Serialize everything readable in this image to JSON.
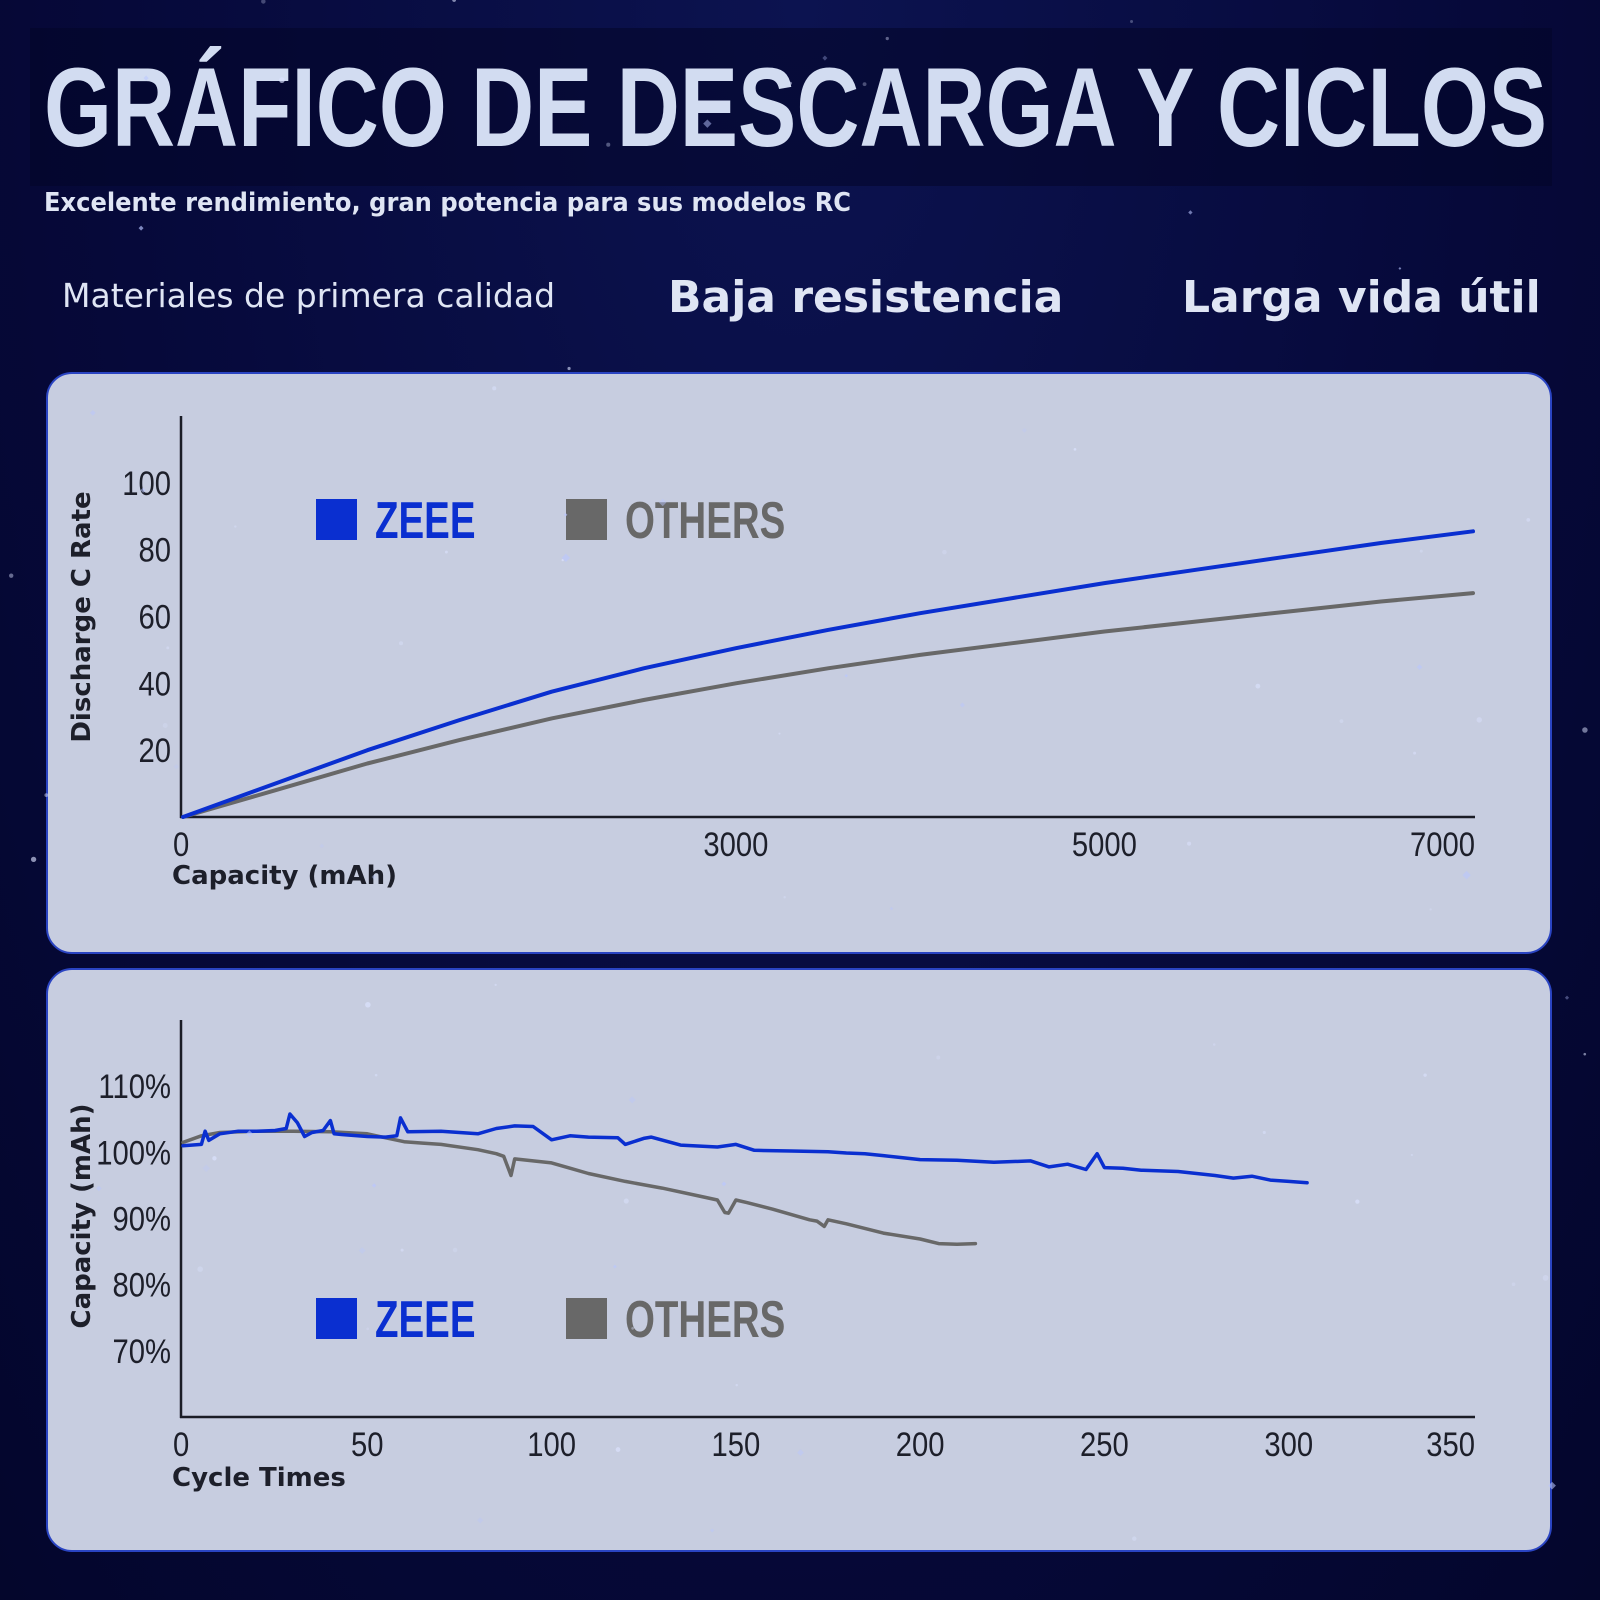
{
  "header": {
    "title": "GRÁFICO DE DESCARGA Y CICLOS",
    "subtitle": "Excelente rendimiento, gran potencia para sus modelos RC"
  },
  "features": [
    {
      "label": "Materiales de primera calidad"
    },
    {
      "label": "Baja resistencia"
    },
    {
      "label": "Larga vida útil"
    }
  ],
  "colors": {
    "zeee": "#0a2fd0",
    "others": "#686868",
    "panel": "#c7cde0",
    "background": "#06093a"
  },
  "chart_data": [
    {
      "type": "line",
      "xlabel": "Capacity (mAh)",
      "ylabel": "Discharge C Rate",
      "xlim": [
        0,
        7000
      ],
      "ylim": [
        0,
        120
      ],
      "x_ticks": [
        "0",
        "3000",
        "5000",
        "7000"
      ],
      "x_tick_values": [
        0,
        3000,
        5000,
        7000
      ],
      "y_ticks": [
        "20",
        "40",
        "60",
        "80",
        "100"
      ],
      "y_tick_values": [
        20,
        40,
        60,
        80,
        100
      ],
      "legend": "top-left",
      "series": [
        {
          "name": "ZEEE",
          "x": [
            0,
            500,
            1000,
            1500,
            2000,
            2500,
            3000,
            3500,
            4000,
            4500,
            5000,
            5500,
            6000,
            6500,
            7000
          ],
          "y": [
            0,
            10,
            20,
            29,
            37.5,
            44.5,
            50.5,
            56,
            61,
            65.5,
            70,
            74,
            78,
            82,
            85.5
          ]
        },
        {
          "name": "OTHERS",
          "x": [
            0,
            500,
            1000,
            1500,
            2000,
            2500,
            3000,
            3500,
            4000,
            4500,
            5000,
            5500,
            6000,
            6500,
            7000
          ],
          "y": [
            0,
            8,
            16,
            23,
            29.5,
            35,
            40,
            44.5,
            48.5,
            52,
            55.5,
            58.5,
            61.5,
            64.5,
            67
          ]
        }
      ]
    },
    {
      "type": "line",
      "xlabel": "Cycle Times",
      "ylabel": "Capacity (mAh)",
      "xlim": [
        0,
        350
      ],
      "ylim": [
        60,
        120
      ],
      "x_ticks": [
        "0",
        "50",
        "100",
        "150",
        "200",
        "250",
        "300",
        "350"
      ],
      "x_tick_values": [
        0,
        50,
        100,
        150,
        200,
        250,
        300,
        350
      ],
      "y_ticks": [
        "70%",
        "80%",
        "90%",
        "100%",
        "110%"
      ],
      "y_tick_values": [
        70,
        80,
        90,
        100,
        110
      ],
      "legend": "bottom-left",
      "series": [
        {
          "name": "ZEEE",
          "x": [
            0,
            5,
            6,
            7,
            10,
            15,
            20,
            25,
            28,
            29,
            31,
            33,
            35,
            38,
            40,
            41,
            43,
            50,
            55,
            58,
            59,
            61,
            70,
            80,
            85,
            90,
            95,
            100,
            105,
            110,
            118,
            120,
            125,
            127,
            135,
            145,
            150,
            155,
            165,
            175,
            180,
            185,
            190,
            195,
            200,
            210,
            220,
            230,
            235,
            240,
            245,
            248,
            250,
            255,
            260,
            270,
            280,
            285,
            290,
            295,
            300,
            305
          ],
          "y": [
            101,
            101.2,
            103.2,
            101.8,
            102.8,
            103.2,
            103.2,
            103.3,
            103.6,
            105.8,
            104.5,
            102.4,
            103,
            103.3,
            104.8,
            102.8,
            102.7,
            102.4,
            102.3,
            102.5,
            105.2,
            103.1,
            103.2,
            102.8,
            103.6,
            104,
            103.9,
            101.9,
            102.5,
            102.3,
            102.2,
            101.2,
            102.1,
            102.3,
            101.1,
            100.8,
            101.2,
            100.3,
            100.2,
            100.1,
            99.9,
            99.8,
            99.5,
            99.2,
            98.9,
            98.8,
            98.5,
            98.7,
            97.8,
            98.2,
            97.4,
            99.8,
            97.7,
            97.6,
            97.3,
            97.1,
            96.5,
            96.1,
            96.4,
            95.8,
            95.6,
            95.4
          ]
        },
        {
          "name": "OTHERS",
          "x": [
            0,
            5,
            10,
            20,
            30,
            40,
            50,
            55,
            60,
            65,
            70,
            80,
            85,
            87,
            89,
            90,
            95,
            100,
            105,
            110,
            120,
            130,
            140,
            145,
            147,
            148,
            150,
            153,
            160,
            170,
            172,
            174,
            175,
            180,
            190,
            200,
            205,
            210,
            215
          ],
          "y": [
            101.5,
            102.5,
            103,
            103.2,
            103.2,
            103.1,
            102.8,
            102.2,
            101.6,
            101.4,
            101.2,
            100.4,
            99.8,
            99.4,
            96.5,
            99,
            98.7,
            98.4,
            97.6,
            96.8,
            95.6,
            94.6,
            93.4,
            92.8,
            90.9,
            90.8,
            92.8,
            92.4,
            91.4,
            89.8,
            89.6,
            88.8,
            89.8,
            89.2,
            87.8,
            86.9,
            86.2,
            86.1,
            86.2
          ]
        }
      ]
    }
  ]
}
